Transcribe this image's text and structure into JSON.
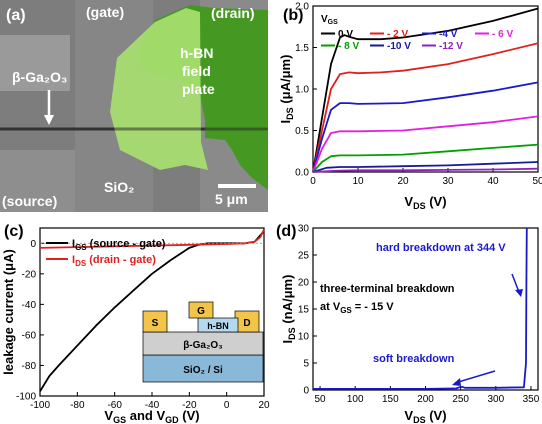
{
  "panels": {
    "a": {
      "label": "(a)",
      "labels": {
        "gate": "(gate)",
        "drain": "(drain)",
        "source": "(source)",
        "material": "β-Ga₂O₃",
        "field_plate": [
          "h-BN",
          "field",
          "plate"
        ],
        "substrate": "SiO₂",
        "scalebar": "5 μm"
      }
    },
    "b": {
      "label": "(b)",
      "legend_title": "V",
      "legend_title_sub": "GS"
    },
    "c": {
      "label": "(c)",
      "inset": {
        "s": "S",
        "g": "G",
        "d": "D",
        "hbn": "h-BN",
        "channel": "β-Ga₂O₃",
        "substrate": "SiO₂ / Si"
      }
    },
    "d": {
      "label": "(d)"
    }
  },
  "colors": {
    "green_plate": "#2e8b00",
    "green_light": "#8fd45a",
    "blue_text": "#1a1acc",
    "red": "#e02020"
  },
  "chart_data": [
    {
      "type": "line",
      "panel": "b",
      "xlabel": "V",
      "xlabel_sub": "DS",
      "xlabel_unit": " (V)",
      "ylabel": "I",
      "ylabel_sub": "DS",
      "ylabel_unit": " (μA/μm)",
      "xlim": [
        0,
        50
      ],
      "ylim": [
        0,
        2.0
      ],
      "xticks": [
        "0",
        "10",
        "20",
        "30",
        "40",
        "50"
      ],
      "yticks": [
        "0.0",
        "0.5",
        "1.0",
        "1.5",
        "2.0"
      ],
      "series": [
        {
          "name": "0 V",
          "color": "#000000",
          "x": [
            0,
            2,
            4,
            6,
            7,
            8,
            10,
            15,
            20,
            30,
            40,
            50
          ],
          "y": [
            0,
            0.65,
            1.3,
            1.62,
            1.65,
            1.63,
            1.6,
            1.6,
            1.62,
            1.7,
            1.82,
            1.97
          ]
        },
        {
          "name": "- 2 V",
          "color": "#e02020",
          "x": [
            0,
            2,
            4,
            6,
            8,
            10,
            15,
            20,
            30,
            40,
            50
          ],
          "y": [
            0,
            0.5,
            1.0,
            1.18,
            1.2,
            1.19,
            1.2,
            1.22,
            1.3,
            1.42,
            1.55
          ]
        },
        {
          "name": "-4 V",
          "color": "#1a1acc",
          "x": [
            0,
            2,
            4,
            6,
            8,
            10,
            20,
            30,
            40,
            50
          ],
          "y": [
            0,
            0.4,
            0.75,
            0.83,
            0.83,
            0.82,
            0.83,
            0.9,
            0.98,
            1.08
          ]
        },
        {
          "name": "- 6 V",
          "color": "#e020e0",
          "x": [
            0,
            2,
            4,
            6,
            8,
            10,
            20,
            30,
            40,
            50
          ],
          "y": [
            0,
            0.28,
            0.47,
            0.49,
            0.49,
            0.49,
            0.5,
            0.55,
            0.6,
            0.67
          ]
        },
        {
          "name": "- 8 V",
          "color": "#00a000",
          "x": [
            0,
            2,
            4,
            6,
            8,
            10,
            20,
            30,
            40,
            50
          ],
          "y": [
            0,
            0.12,
            0.19,
            0.2,
            0.2,
            0.2,
            0.21,
            0.25,
            0.29,
            0.33
          ]
        },
        {
          "name": "-10 V",
          "color": "#1a1a99",
          "x": [
            0,
            3,
            6,
            10,
            20,
            30,
            40,
            50
          ],
          "y": [
            0,
            0.05,
            0.06,
            0.06,
            0.07,
            0.08,
            0.1,
            0.12
          ]
        },
        {
          "name": "-12 V",
          "color": "#9020c0",
          "x": [
            0,
            5,
            10,
            20,
            30,
            40,
            50
          ],
          "y": [
            0,
            0.015,
            0.02,
            0.02,
            0.025,
            0.03,
            0.04
          ]
        }
      ]
    },
    {
      "type": "line",
      "panel": "c",
      "xlabel": "V",
      "xlabel_sub1": "GS",
      "xlabel_mid": " and V",
      "xlabel_sub2": "GD",
      "xlabel_unit": " (V)",
      "ylabel": "leakage current (μA)",
      "xlim": [
        -100,
        20
      ],
      "ylim": [
        -100,
        10
      ],
      "xticks": [
        "-100",
        "-80",
        "-60",
        "-40",
        "-20",
        "0",
        "20"
      ],
      "yticks": [
        "-100",
        "-80",
        "-60",
        "-40",
        "-20",
        "0"
      ],
      "series": [
        {
          "name": "I",
          "name_sub": "GS",
          "name_rest": " (source - gate)",
          "color": "#000000",
          "x": [
            -100,
            -95,
            -90,
            -80,
            -70,
            -60,
            -50,
            -40,
            -30,
            -20,
            -15,
            -10,
            0,
            5,
            10,
            15,
            20
          ],
          "y": [
            -97,
            -87,
            -80,
            -67,
            -54,
            -42,
            -31,
            -20,
            -11,
            -3,
            -1,
            0,
            0,
            0,
            0,
            1,
            8
          ]
        },
        {
          "name": "I",
          "name_sub": "DS",
          "name_rest": " (drain - gate)",
          "color": "#e02020",
          "x": [
            -100,
            -80,
            -60,
            -40,
            -20,
            0,
            10,
            15,
            18,
            20
          ],
          "y": [
            -3,
            -2.5,
            -2,
            -1.5,
            -1,
            -0.5,
            0,
            1,
            4,
            9
          ]
        }
      ]
    },
    {
      "type": "line",
      "panel": "d",
      "xlabel": "V",
      "xlabel_sub": "DS",
      "xlabel_unit": " (V)",
      "ylabel": "I",
      "ylabel_sub": "DS",
      "ylabel_unit": " (nA/μm)",
      "xlim": [
        40,
        360
      ],
      "ylim": [
        0,
        30
      ],
      "xticks": [
        "50",
        "100",
        "150",
        "200",
        "250",
        "300",
        "350"
      ],
      "yticks": [
        "0",
        "5",
        "10",
        "15",
        "20",
        "25",
        "30"
      ],
      "series": [
        {
          "name": "",
          "color": "#1a1acc",
          "x": [
            40,
            100,
            200,
            244,
            248,
            252,
            256,
            300,
            340,
            343,
            343.5,
            344
          ],
          "y": [
            0.2,
            0.2,
            0.2,
            0.3,
            0.5,
            0.6,
            0.4,
            0.4,
            0.5,
            5,
            20,
            30
          ]
        }
      ],
      "annotations": {
        "hard": "hard breakdown at 344 V",
        "soft": "soft breakdown",
        "three1": "three-terminal breakdown",
        "three2_a": "at V",
        "three2_sub": "GS",
        "three2_b": " = - 15 V"
      }
    }
  ]
}
